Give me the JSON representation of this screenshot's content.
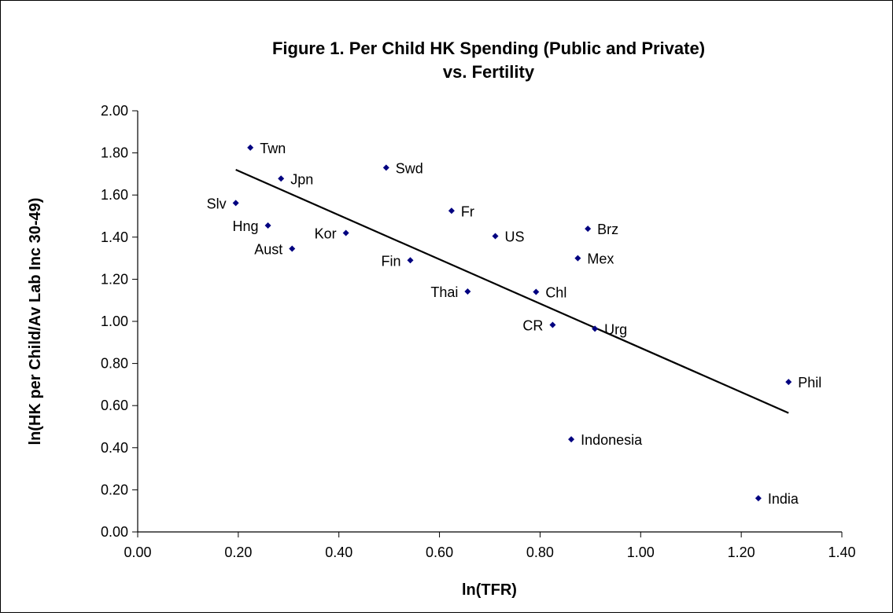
{
  "chart_data": {
    "type": "scatter",
    "title_lines": [
      "Figure 1.  Per Child HK Spending (Public and Private)",
      "vs. Fertility"
    ],
    "xlabel": "ln(TFR)",
    "ylabel": "ln(HK per Child/Av Lab Inc 30-49)",
    "xlim": [
      0,
      1.4
    ],
    "ylim": [
      0,
      2
    ],
    "x_ticks": [
      0.0,
      0.2,
      0.4,
      0.6,
      0.8,
      1.0,
      1.2,
      1.4
    ],
    "y_ticks": [
      0.0,
      0.2,
      0.4,
      0.6,
      0.8,
      1.0,
      1.2,
      1.4,
      1.6,
      1.8,
      2.0
    ],
    "tick_format_decimals": 2,
    "grid": false,
    "legend": "none",
    "marker_color": "#000080",
    "line_color": "#000000",
    "points": [
      {
        "label": "Twn",
        "x": 0.224,
        "y": 1.825,
        "label_side": "right"
      },
      {
        "label": "Jpn",
        "x": 0.285,
        "y": 1.678,
        "label_side": "right"
      },
      {
        "label": "Swd",
        "x": 0.494,
        "y": 1.73,
        "label_side": "right"
      },
      {
        "label": "Slv",
        "x": 0.195,
        "y": 1.562,
        "label_side": "left"
      },
      {
        "label": "Hng",
        "x": 0.259,
        "y": 1.455,
        "label_side": "left"
      },
      {
        "label": "Aust",
        "x": 0.307,
        "y": 1.345,
        "label_side": "left"
      },
      {
        "label": "Kor",
        "x": 0.414,
        "y": 1.42,
        "label_side": "left"
      },
      {
        "label": "Fr",
        "x": 0.624,
        "y": 1.525,
        "label_side": "right"
      },
      {
        "label": "US",
        "x": 0.711,
        "y": 1.405,
        "label_side": "right"
      },
      {
        "label": "Fin",
        "x": 0.542,
        "y": 1.29,
        "label_side": "left"
      },
      {
        "label": "Brz",
        "x": 0.895,
        "y": 1.44,
        "label_side": "right"
      },
      {
        "label": "Mex",
        "x": 0.875,
        "y": 1.3,
        "label_side": "right"
      },
      {
        "label": "Thai",
        "x": 0.656,
        "y": 1.142,
        "label_side": "left"
      },
      {
        "label": "Chl",
        "x": 0.792,
        "y": 1.14,
        "label_side": "right"
      },
      {
        "label": "CR",
        "x": 0.825,
        "y": 0.983,
        "label_side": "left"
      },
      {
        "label": "Urg",
        "x": 0.909,
        "y": 0.965,
        "label_side": "right"
      },
      {
        "label": "Phil",
        "x": 1.294,
        "y": 0.712,
        "label_side": "right"
      },
      {
        "label": "Indonesia",
        "x": 0.862,
        "y": 0.44,
        "label_side": "right"
      },
      {
        "label": "India",
        "x": 1.234,
        "y": 0.16,
        "label_side": "right"
      }
    ],
    "trendline": {
      "x1": 0.195,
      "y1": 1.72,
      "x2": 1.294,
      "y2": 0.565
    }
  }
}
